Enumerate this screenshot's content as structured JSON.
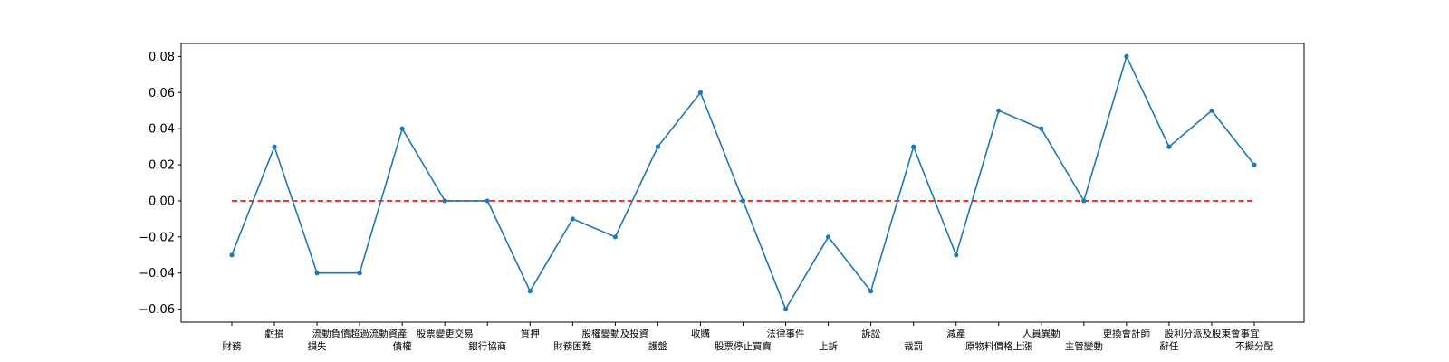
{
  "chart_data": {
    "type": "line",
    "title": "",
    "xlabel": "",
    "ylabel": "",
    "ylim": [
      -0.0672,
      0.0872
    ],
    "yticks": [
      -0.06,
      -0.04,
      -0.02,
      0.0,
      0.02,
      0.04,
      0.06,
      0.08
    ],
    "ytick_labels": [
      "−0.06",
      "−0.04",
      "−0.02",
      "0.00",
      "0.02",
      "0.04",
      "0.06",
      "0.08"
    ],
    "grid": false,
    "categories": [
      "財務",
      "虧損",
      "損失",
      "流動負債超過流動資產",
      "債權",
      "股票變更交易",
      "銀行協商",
      "質押",
      "財務困難",
      "股權變動及投資",
      "護盤",
      "收購",
      "股票停止買賣",
      "法律事件",
      "上訴",
      "訴訟",
      "裁罰",
      "減產",
      "原物料價格上漲",
      "人員異動",
      "主管變動",
      "更換會計師",
      "辭任",
      "股利分派及股東會事宜",
      "不擬分配"
    ],
    "label_rows": [
      1,
      0,
      1,
      0,
      1,
      0,
      1,
      0,
      1,
      0,
      1,
      0,
      1,
      0,
      1,
      0,
      1,
      0,
      1,
      0,
      1,
      0,
      1,
      0,
      1
    ],
    "series": [
      {
        "values": [
          -0.03,
          0.03,
          -0.04,
          -0.04,
          0.04,
          0.0,
          0.0,
          -0.05,
          -0.01,
          -0.02,
          0.03,
          0.06,
          0.0,
          -0.06,
          -0.02,
          -0.05,
          0.03,
          -0.03,
          0.05,
          0.04,
          0.0,
          0.08,
          0.03,
          0.05,
          0.02
        ],
        "color": "#1f77b4",
        "marker": "circle"
      }
    ],
    "reference_line": {
      "y": 0.0,
      "style": "dashed",
      "color": "#ff0000"
    }
  }
}
